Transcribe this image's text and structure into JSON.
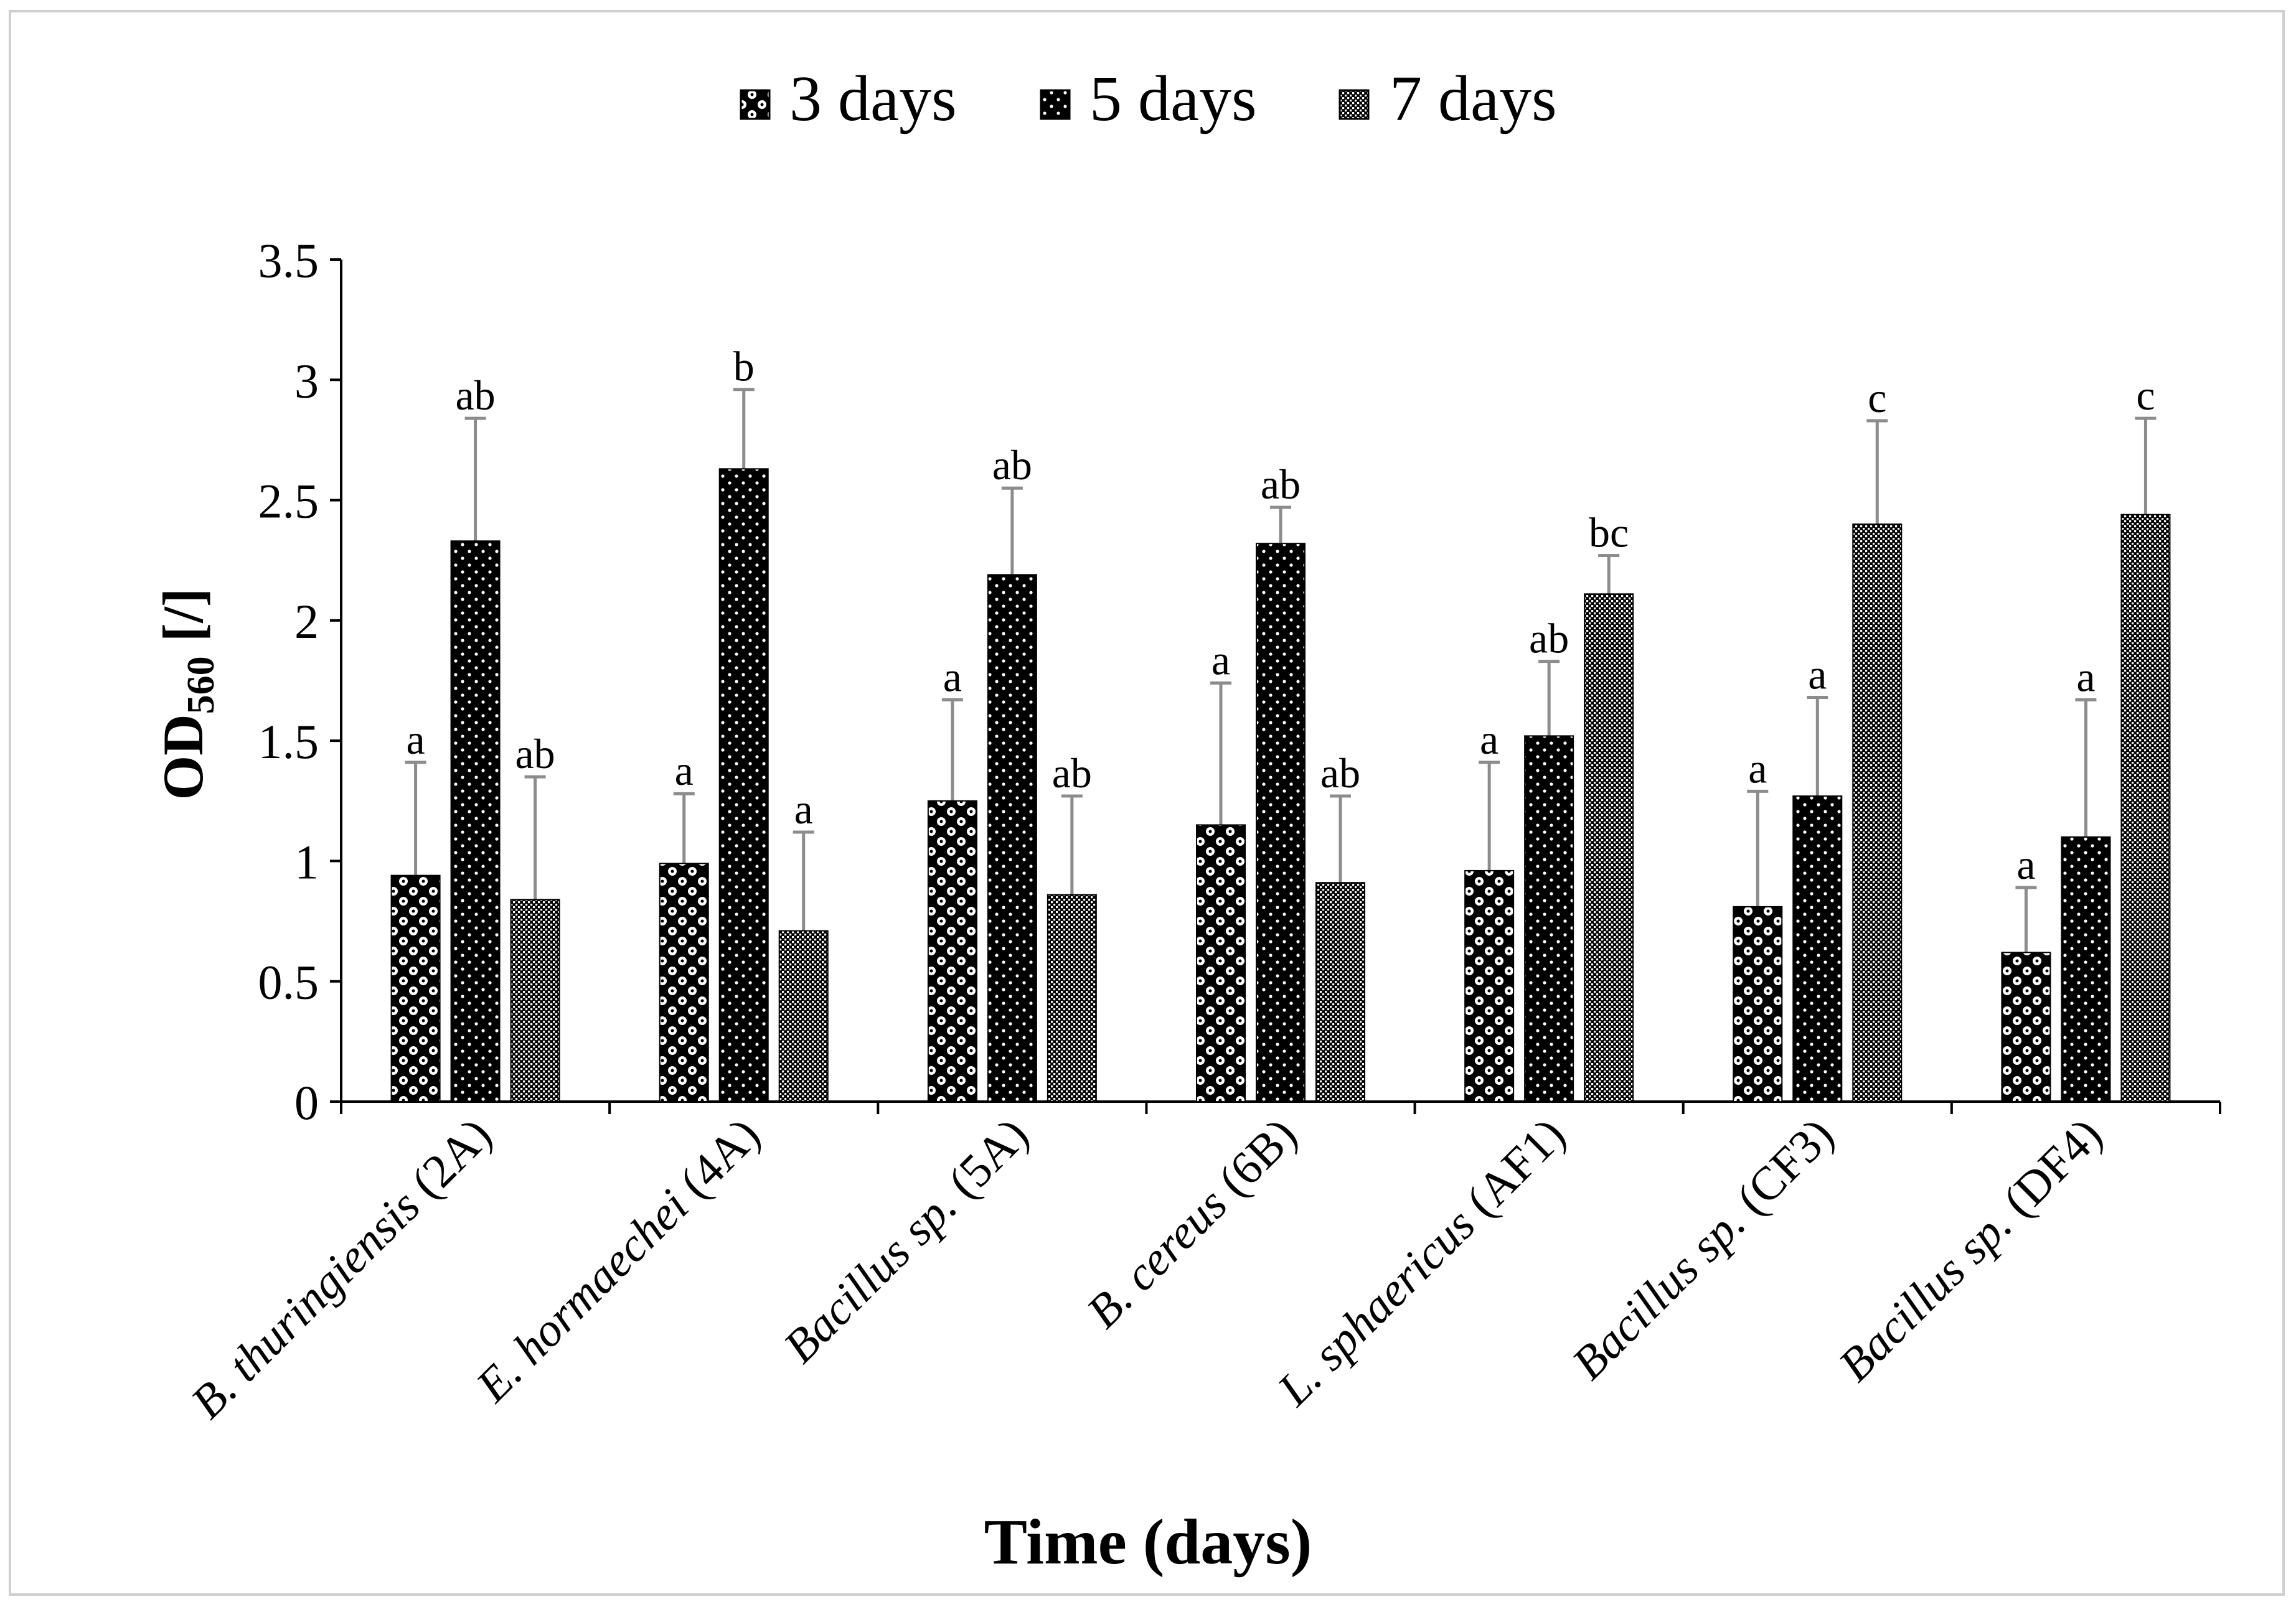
{
  "chart_data": {
    "type": "bar",
    "title": "",
    "xlabel": "Time (days)",
    "ylabel_main": "OD",
    "ylabel_sub": "560",
    "ylabel_suffix": " [/]",
    "ylim": [
      0,
      3.5
    ],
    "yticks": [
      "0",
      "0.5",
      "1",
      "1.5",
      "2",
      "2.5",
      "3",
      "3.5"
    ],
    "ytick_values": [
      0,
      0.5,
      1,
      1.5,
      2,
      2.5,
      3,
      3.5
    ],
    "grid": false,
    "legend_position": "top-center",
    "categories": [
      "B. thuringiensis (2A)",
      "E. hormaechei (4A)",
      "Bacillus sp. (5A)",
      "B. cereus (6B)",
      "L. sphaericus (AF1)",
      "Bacillus sp. (CF3)",
      "Bacillus sp. (DF4)"
    ],
    "category_parts": [
      {
        "italic": "B. thuringiensis",
        "plain": " (2A)"
      },
      {
        "italic": "E. hormaechei",
        "plain": " (4A)"
      },
      {
        "italic": "Bacillus sp.",
        "plain": " (5A)"
      },
      {
        "italic": "B. cereus",
        "plain": " (6B)"
      },
      {
        "italic": "L. sphaericus",
        "plain": " (AF1)"
      },
      {
        "italic": "Bacillus sp.",
        "plain": " (CF3)"
      },
      {
        "italic": "Bacillus sp.",
        "plain": " (DF4)"
      }
    ],
    "series": [
      {
        "name": "3 days",
        "pattern": "checker",
        "values": [
          0.94,
          0.99,
          1.25,
          1.15,
          0.96,
          0.81,
          0.62
        ],
        "errors": [
          0.47,
          0.29,
          0.42,
          0.59,
          0.45,
          0.48,
          0.27
        ],
        "letters": [
          "a",
          "a",
          "a",
          "a",
          "a",
          "a",
          "a"
        ]
      },
      {
        "name": "5 days",
        "pattern": "dots",
        "values": [
          2.33,
          2.63,
          2.19,
          2.32,
          1.52,
          1.27,
          1.1
        ],
        "errors": [
          0.51,
          0.33,
          0.36,
          0.15,
          0.31,
          0.41,
          0.57
        ],
        "letters": [
          "ab",
          "b",
          "ab",
          "ab",
          "ab",
          "a",
          "a"
        ]
      },
      {
        "name": "7 days",
        "pattern": "fine",
        "values": [
          0.84,
          0.71,
          0.86,
          0.91,
          2.11,
          2.4,
          2.44
        ],
        "errors": [
          0.51,
          0.41,
          0.41,
          0.36,
          0.16,
          0.43,
          0.4
        ],
        "letters": [
          "ab",
          "a",
          "ab",
          "ab",
          "bc",
          "c",
          "c"
        ]
      }
    ]
  },
  "colors": {
    "bar_dark": "#000000",
    "bar_light": "#ffffff",
    "axis": "#000000",
    "error_bar": "#8c8c8c",
    "frame": "#cfcfcf"
  }
}
